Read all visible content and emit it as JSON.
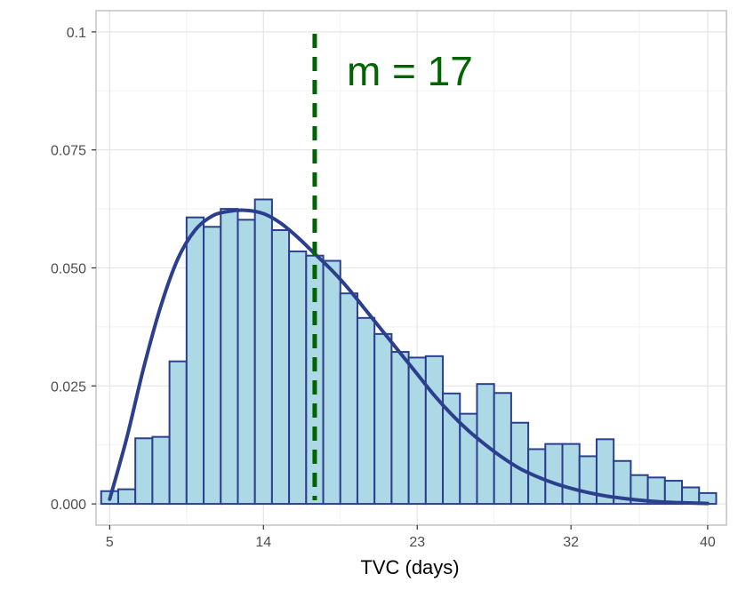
{
  "chart_data": {
    "type": "bar",
    "title": "",
    "xlabel": "TVC (days)",
    "ylabel": "",
    "xlim": [
      4.2,
      41.1
    ],
    "ylim": [
      -0.0045,
      0.1045
    ],
    "x_ticks": [
      5,
      14,
      23,
      32,
      40
    ],
    "x_tick_labels": [
      "5",
      "14",
      "23",
      "32",
      "40"
    ],
    "y_ticks": [
      0,
      0.025,
      0.05,
      0.075,
      0.1
    ],
    "y_tick_labels": [
      "0.000",
      "0.025",
      "0.050",
      "0.075",
      "0.1"
    ],
    "grid": true,
    "bin_width": 1,
    "bins": [
      {
        "x": 5,
        "density": 0.0027
      },
      {
        "x": 6,
        "density": 0.0031
      },
      {
        "x": 7,
        "density": 0.0139
      },
      {
        "x": 8,
        "density": 0.0142
      },
      {
        "x": 9,
        "density": 0.0302
      },
      {
        "x": 10,
        "density": 0.0607
      },
      {
        "x": 11,
        "density": 0.0587
      },
      {
        "x": 12,
        "density": 0.0625
      },
      {
        "x": 13,
        "density": 0.0602
      },
      {
        "x": 14,
        "density": 0.0645
      },
      {
        "x": 15,
        "density": 0.058
      },
      {
        "x": 16,
        "density": 0.0535
      },
      {
        "x": 17,
        "density": 0.0526
      },
      {
        "x": 18,
        "density": 0.0515
      },
      {
        "x": 19,
        "density": 0.0446
      },
      {
        "x": 20,
        "density": 0.0394
      },
      {
        "x": 21,
        "density": 0.036
      },
      {
        "x": 22,
        "density": 0.0322
      },
      {
        "x": 23,
        "density": 0.031
      },
      {
        "x": 24,
        "density": 0.0313
      },
      {
        "x": 25,
        "density": 0.0234
      },
      {
        "x": 26,
        "density": 0.0191
      },
      {
        "x": 27,
        "density": 0.0254
      },
      {
        "x": 28,
        "density": 0.0235
      },
      {
        "x": 29,
        "density": 0.0172
      },
      {
        "x": 30,
        "density": 0.0116
      },
      {
        "x": 31,
        "density": 0.0127
      },
      {
        "x": 32,
        "density": 0.0127
      },
      {
        "x": 33,
        "density": 0.0101
      },
      {
        "x": 34,
        "density": 0.0137
      },
      {
        "x": 35,
        "density": 0.0091
      },
      {
        "x": 36,
        "density": 0.0061
      },
      {
        "x": 37,
        "density": 0.0056
      },
      {
        "x": 38,
        "density": 0.0049
      },
      {
        "x": 39,
        "density": 0.0035
      },
      {
        "x": 40,
        "density": 0.0023
      }
    ],
    "density_curve": {
      "x": [
        5,
        6,
        7,
        8,
        9,
        10,
        11,
        12,
        13,
        14,
        15,
        16,
        17,
        18,
        19,
        20,
        21,
        22,
        23,
        24,
        25,
        26,
        27,
        28,
        29,
        30,
        31,
        32,
        33,
        34,
        35,
        36,
        37,
        38,
        39,
        40
      ],
      "y": [
        0.001,
        0.014,
        0.029,
        0.042,
        0.052,
        0.058,
        0.061,
        0.062,
        0.0622,
        0.0615,
        0.0595,
        0.0565,
        0.053,
        0.0495,
        0.0455,
        0.041,
        0.0365,
        0.032,
        0.0275,
        0.023,
        0.019,
        0.0155,
        0.0125,
        0.0098,
        0.0075,
        0.0058,
        0.0044,
        0.0033,
        0.0024,
        0.0017,
        0.0012,
        0.0008,
        0.0005,
        0.0003,
        0.0002,
        0.0001
      ]
    },
    "reference_line": {
      "x": 17,
      "label": "m = 17",
      "color": "#006400"
    },
    "colors": {
      "bar_fill": "#add8e6",
      "bar_stroke": "#2b3f8e",
      "curve": "#2b3f8e",
      "panel_border": "#b3b3b3",
      "grid_major": "#e5e5e5",
      "grid_minor": "#f2f2f2",
      "tick_text": "#4d4d4d"
    }
  }
}
